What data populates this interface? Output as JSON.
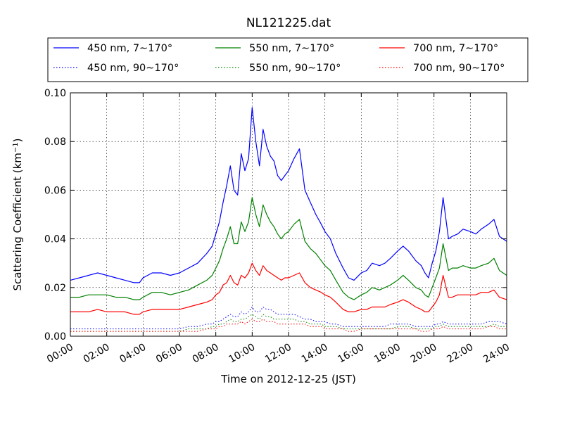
{
  "chart_data": {
    "type": "line",
    "title": "NL121225.dat",
    "xlabel": "Time on 2012-12-25 (JST)",
    "ylabel_main": "Scattering Coefficient (km",
    "ylabel_sup": "−1",
    "ylabel_close": ")",
    "xlim_hours": [
      0,
      24
    ],
    "ylim": [
      0,
      0.1
    ],
    "x_tick_labels": [
      "00:00",
      "02:00",
      "04:00",
      "06:00",
      "08:00",
      "10:00",
      "12:00",
      "14:00",
      "16:00",
      "18:00",
      "20:00",
      "22:00",
      "24:00"
    ],
    "x_tick_hours": [
      0,
      2,
      4,
      6,
      8,
      10,
      12,
      14,
      16,
      18,
      20,
      22,
      24
    ],
    "y_tick_labels": [
      "0.00",
      "0.02",
      "0.04",
      "0.06",
      "0.08",
      "0.10"
    ],
    "y_ticks": [
      0,
      0.02,
      0.04,
      0.06,
      0.08,
      0.1
    ],
    "grid": true,
    "legend_position": "top-outside",
    "x_hours": [
      0,
      0.5,
      1,
      1.5,
      2,
      2.5,
      3,
      3.5,
      3.8,
      4,
      4.5,
      5,
      5.5,
      6,
      6.5,
      7,
      7.5,
      7.8,
      8,
      8.2,
      8.4,
      8.6,
      8.8,
      9,
      9.2,
      9.4,
      9.6,
      9.8,
      10,
      10.2,
      10.4,
      10.6,
      10.8,
      11,
      11.2,
      11.4,
      11.6,
      11.8,
      12,
      12.3,
      12.6,
      12.9,
      13.2,
      13.5,
      13.8,
      14,
      14.3,
      14.6,
      15,
      15.3,
      15.6,
      16,
      16.3,
      16.6,
      17,
      17.3,
      17.6,
      18,
      18.3,
      18.6,
      19,
      19.3,
      19.5,
      19.7,
      19.9,
      20.1,
      20.3,
      20.5,
      20.8,
      21,
      21.3,
      21.6,
      22,
      22.3,
      22.6,
      23,
      23.3,
      23.6,
      24
    ],
    "series": [
      {
        "name": "450 nm, 7∼170°",
        "color": "#0000ff",
        "style": "solid",
        "values": [
          0.023,
          0.024,
          0.025,
          0.026,
          0.025,
          0.024,
          0.023,
          0.022,
          0.022,
          0.024,
          0.026,
          0.026,
          0.025,
          0.026,
          0.028,
          0.03,
          0.034,
          0.037,
          0.042,
          0.047,
          0.055,
          0.062,
          0.07,
          0.06,
          0.058,
          0.075,
          0.068,
          0.073,
          0.094,
          0.08,
          0.07,
          0.085,
          0.078,
          0.074,
          0.072,
          0.066,
          0.064,
          0.066,
          0.068,
          0.073,
          0.077,
          0.06,
          0.055,
          0.05,
          0.046,
          0.043,
          0.04,
          0.034,
          0.028,
          0.024,
          0.023,
          0.026,
          0.027,
          0.03,
          0.029,
          0.03,
          0.032,
          0.035,
          0.037,
          0.035,
          0.031,
          0.029,
          0.026,
          0.024,
          0.03,
          0.035,
          0.043,
          0.057,
          0.04,
          0.041,
          0.042,
          0.044,
          0.043,
          0.042,
          0.044,
          0.046,
          0.048,
          0.041,
          0.039
        ]
      },
      {
        "name": "550 nm, 7∼170°",
        "color": "#008000",
        "style": "solid",
        "values": [
          0.016,
          0.016,
          0.017,
          0.017,
          0.017,
          0.016,
          0.016,
          0.015,
          0.015,
          0.016,
          0.018,
          0.018,
          0.017,
          0.018,
          0.019,
          0.021,
          0.023,
          0.025,
          0.028,
          0.031,
          0.036,
          0.04,
          0.045,
          0.038,
          0.038,
          0.047,
          0.043,
          0.047,
          0.057,
          0.05,
          0.045,
          0.054,
          0.05,
          0.047,
          0.045,
          0.042,
          0.04,
          0.042,
          0.043,
          0.046,
          0.048,
          0.039,
          0.036,
          0.034,
          0.031,
          0.029,
          0.027,
          0.023,
          0.018,
          0.016,
          0.015,
          0.017,
          0.018,
          0.02,
          0.019,
          0.02,
          0.021,
          0.023,
          0.025,
          0.023,
          0.02,
          0.019,
          0.017,
          0.016,
          0.02,
          0.024,
          0.028,
          0.038,
          0.027,
          0.028,
          0.028,
          0.029,
          0.028,
          0.028,
          0.029,
          0.03,
          0.032,
          0.027,
          0.025
        ]
      },
      {
        "name": "700 nm, 7∼170°",
        "color": "#ff0000",
        "style": "solid",
        "values": [
          0.01,
          0.01,
          0.01,
          0.011,
          0.01,
          0.01,
          0.01,
          0.009,
          0.009,
          0.01,
          0.011,
          0.011,
          0.011,
          0.011,
          0.012,
          0.013,
          0.014,
          0.015,
          0.017,
          0.018,
          0.021,
          0.022,
          0.025,
          0.022,
          0.021,
          0.025,
          0.024,
          0.026,
          0.03,
          0.027,
          0.025,
          0.029,
          0.027,
          0.026,
          0.025,
          0.024,
          0.023,
          0.024,
          0.024,
          0.025,
          0.026,
          0.022,
          0.02,
          0.019,
          0.018,
          0.017,
          0.016,
          0.014,
          0.011,
          0.01,
          0.01,
          0.011,
          0.011,
          0.012,
          0.012,
          0.012,
          0.013,
          0.014,
          0.015,
          0.014,
          0.012,
          0.011,
          0.01,
          0.01,
          0.012,
          0.014,
          0.017,
          0.025,
          0.016,
          0.016,
          0.017,
          0.017,
          0.017,
          0.017,
          0.018,
          0.018,
          0.019,
          0.016,
          0.015
        ]
      },
      {
        "name": "450 nm, 90∼170°",
        "color": "#0000ff",
        "style": "dotted",
        "values": [
          0.003,
          0.003,
          0.003,
          0.003,
          0.003,
          0.003,
          0.003,
          0.003,
          0.003,
          0.003,
          0.003,
          0.003,
          0.003,
          0.003,
          0.004,
          0.004,
          0.005,
          0.005,
          0.006,
          0.006,
          0.007,
          0.008,
          0.009,
          0.008,
          0.008,
          0.01,
          0.009,
          0.01,
          0.012,
          0.01,
          0.01,
          0.012,
          0.011,
          0.011,
          0.01,
          0.009,
          0.009,
          0.009,
          0.009,
          0.009,
          0.008,
          0.007,
          0.007,
          0.006,
          0.006,
          0.006,
          0.005,
          0.005,
          0.004,
          0.004,
          0.004,
          0.004,
          0.004,
          0.004,
          0.004,
          0.004,
          0.005,
          0.005,
          0.005,
          0.005,
          0.004,
          0.004,
          0.004,
          0.004,
          0.004,
          0.005,
          0.005,
          0.006,
          0.005,
          0.005,
          0.005,
          0.005,
          0.005,
          0.005,
          0.005,
          0.006,
          0.006,
          0.006,
          0.005
        ]
      },
      {
        "name": "550 nm, 90∼170°",
        "color": "#008000",
        "style": "dotted",
        "values": [
          0.002,
          0.002,
          0.002,
          0.002,
          0.002,
          0.002,
          0.002,
          0.002,
          0.002,
          0.002,
          0.002,
          0.002,
          0.002,
          0.002,
          0.003,
          0.003,
          0.003,
          0.004,
          0.004,
          0.005,
          0.005,
          0.006,
          0.007,
          0.006,
          0.006,
          0.007,
          0.007,
          0.008,
          0.009,
          0.008,
          0.007,
          0.009,
          0.008,
          0.008,
          0.007,
          0.007,
          0.007,
          0.007,
          0.007,
          0.007,
          0.006,
          0.006,
          0.005,
          0.005,
          0.005,
          0.004,
          0.004,
          0.004,
          0.003,
          0.003,
          0.003,
          0.003,
          0.003,
          0.003,
          0.003,
          0.003,
          0.003,
          0.004,
          0.004,
          0.004,
          0.003,
          0.003,
          0.003,
          0.003,
          0.003,
          0.004,
          0.004,
          0.005,
          0.004,
          0.004,
          0.004,
          0.004,
          0.004,
          0.004,
          0.004,
          0.004,
          0.005,
          0.004,
          0.004
        ]
      },
      {
        "name": "700 nm, 90∼170°",
        "color": "#ff0000",
        "style": "dotted",
        "values": [
          0.002,
          0.002,
          0.002,
          0.002,
          0.002,
          0.002,
          0.002,
          0.002,
          0.002,
          0.002,
          0.002,
          0.002,
          0.002,
          0.002,
          0.002,
          0.002,
          0.003,
          0.003,
          0.003,
          0.004,
          0.004,
          0.005,
          0.005,
          0.005,
          0.005,
          0.006,
          0.005,
          0.006,
          0.007,
          0.006,
          0.006,
          0.007,
          0.006,
          0.006,
          0.006,
          0.005,
          0.005,
          0.005,
          0.005,
          0.005,
          0.005,
          0.005,
          0.004,
          0.004,
          0.004,
          0.003,
          0.003,
          0.003,
          0.003,
          0.002,
          0.002,
          0.003,
          0.003,
          0.003,
          0.003,
          0.003,
          0.003,
          0.003,
          0.003,
          0.003,
          0.003,
          0.002,
          0.002,
          0.002,
          0.003,
          0.003,
          0.003,
          0.004,
          0.003,
          0.003,
          0.003,
          0.003,
          0.003,
          0.003,
          0.003,
          0.004,
          0.004,
          0.003,
          0.003
        ]
      }
    ],
    "legend_order": [
      0,
      1,
      2,
      3,
      4,
      5
    ]
  }
}
